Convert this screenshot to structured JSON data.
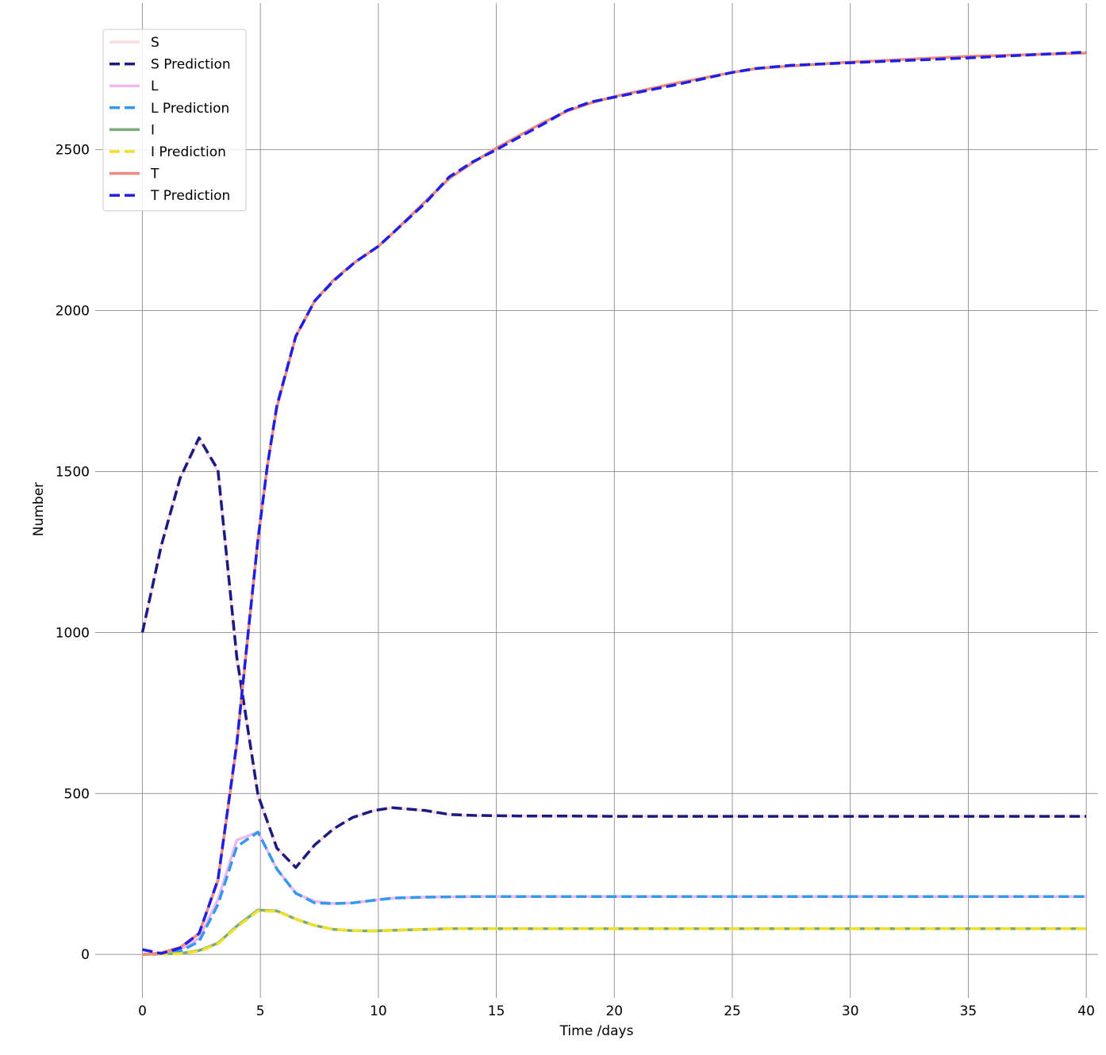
{
  "chart_data": {
    "type": "line",
    "xlabel": "Time /days",
    "ylabel": "Number",
    "xlim": [
      -2,
      40.5
    ],
    "ylim": [
      -135,
      2955
    ],
    "xticks": [
      0,
      5,
      10,
      15,
      20,
      25,
      30,
      35,
      40
    ],
    "xtick_labels": [
      "0",
      "5",
      "10",
      "15",
      "20",
      "25",
      "30",
      "35",
      "40"
    ],
    "yticks": [
      0,
      500,
      1000,
      1500,
      2000,
      2500
    ],
    "ytick_labels": [
      "0",
      "500",
      "1000",
      "1500",
      "2000",
      "2500"
    ],
    "grid": true,
    "legend_position": "top-left",
    "series": [
      {
        "name": "S",
        "style": "solid",
        "color": "#fadadd",
        "width": 3.5,
        "x": [
          0,
          0.8,
          1.6,
          2.4,
          3.2,
          4.0,
          4.9,
          5.7,
          6.5,
          7.3,
          8.1,
          8.9,
          9.8,
          10.6,
          12,
          13,
          14,
          16,
          18,
          20,
          25,
          30,
          35,
          40
        ],
        "values": [
          1000,
          1270,
          1480,
          1600,
          1500,
          920,
          490,
          330,
          270,
          340,
          390,
          425,
          446,
          456,
          446,
          434,
          431,
          430,
          430,
          429,
          429,
          429,
          429,
          429
        ]
      },
      {
        "name": "S Prediction",
        "style": "dashed",
        "color": "#1a1a80",
        "width": 3.5,
        "x": [
          0,
          0.8,
          1.6,
          2.4,
          3.2,
          4.0,
          4.9,
          5.7,
          6.5,
          7.3,
          8.1,
          8.9,
          9.8,
          10.6,
          12,
          13,
          14,
          16,
          18,
          20,
          25,
          30,
          35,
          40
        ],
        "values": [
          1000,
          1270,
          1480,
          1605,
          1505,
          925,
          495,
          330,
          270,
          340,
          390,
          425,
          447,
          456,
          447,
          435,
          432,
          430,
          430,
          429,
          429,
          429,
          429,
          429
        ]
      },
      {
        "name": "L",
        "style": "solid",
        "color": "#f0b8ee",
        "width": 3.5,
        "x": [
          0,
          0.8,
          1.6,
          2.4,
          3.2,
          4.0,
          4.9,
          5.7,
          6.5,
          7.3,
          8.1,
          8.9,
          9.8,
          10.6,
          12,
          13,
          14,
          16,
          18,
          20,
          25,
          30,
          35,
          40
        ],
        "values": [
          0,
          4,
          15,
          50,
          170,
          355,
          380,
          265,
          190,
          165,
          158,
          160,
          168,
          175,
          178,
          179,
          180,
          180,
          180,
          180,
          180,
          180,
          180,
          180
        ]
      },
      {
        "name": "L Prediction",
        "style": "dashed",
        "color": "#3399ee",
        "width": 3.5,
        "x": [
          0,
          0.8,
          1.6,
          2.4,
          3.2,
          4.0,
          4.9,
          5.7,
          6.5,
          7.3,
          8.1,
          8.9,
          9.8,
          10.6,
          12,
          13,
          14,
          16,
          18,
          20,
          25,
          30,
          35,
          40
        ],
        "values": [
          0,
          2,
          10,
          40,
          155,
          335,
          380,
          265,
          190,
          160,
          158,
          160,
          168,
          175,
          178,
          179,
          180,
          180,
          180,
          180,
          180,
          180,
          180,
          180
        ]
      },
      {
        "name": "I",
        "style": "solid",
        "color": "#7daa7d",
        "width": 3.5,
        "x": [
          0,
          0.8,
          1.6,
          2.4,
          3.2,
          4.0,
          4.9,
          5.7,
          6.5,
          7.3,
          8.1,
          8.9,
          9.8,
          10.6,
          12,
          13,
          14,
          16,
          18,
          20,
          25,
          30,
          35,
          40
        ],
        "values": [
          0,
          1,
          3,
          12,
          35,
          88,
          138,
          135,
          110,
          90,
          78,
          74,
          73,
          75,
          78,
          80,
          80,
          80,
          80,
          80,
          80,
          80,
          80,
          80
        ]
      },
      {
        "name": "I Prediction",
        "style": "dashed",
        "color": "#f2df28",
        "width": 3.5,
        "x": [
          0,
          0.8,
          1.6,
          2.4,
          3.2,
          4.0,
          4.9,
          5.7,
          6.5,
          7.3,
          8.1,
          8.9,
          9.8,
          10.6,
          12,
          13,
          14,
          16,
          18,
          20,
          25,
          30,
          35,
          40
        ],
        "values": [
          0,
          1,
          3,
          10,
          33,
          85,
          135,
          134,
          110,
          90,
          78,
          74,
          73,
          75,
          78,
          80,
          80,
          80,
          80,
          80,
          80,
          80,
          80,
          80
        ]
      },
      {
        "name": "T",
        "style": "solid",
        "color": "#f08a80",
        "width": 3.5,
        "x": [
          0,
          0.8,
          1.6,
          2.4,
          3.2,
          4.0,
          4.5,
          4.9,
          5.3,
          5.7,
          6.5,
          7.3,
          8.1,
          9.0,
          10.0,
          10.6,
          12.0,
          13.0,
          14.0,
          15.0,
          16.0,
          17.0,
          18.0,
          19.0,
          20.0,
          22.5,
          25.0,
          26.0,
          27.5,
          30.0,
          35.0,
          40.0
        ],
        "values": [
          0,
          5,
          22,
          65,
          230,
          650,
          1010,
          1290,
          1520,
          1700,
          1920,
          2030,
          2095,
          2150,
          2200,
          2240,
          2340,
          2410,
          2460,
          2505,
          2545,
          2585,
          2620,
          2645,
          2665,
          2705,
          2740,
          2752,
          2760,
          2772,
          2790,
          2800
        ]
      },
      {
        "name": "T Prediction",
        "style": "dashed",
        "color": "#1f1fe6",
        "width": 3.5,
        "x": [
          0,
          0.8,
          1.6,
          2.4,
          3.2,
          4.0,
          4.5,
          4.9,
          5.3,
          5.7,
          6.5,
          7.3,
          8.1,
          9.0,
          10.0,
          10.6,
          12.0,
          13.0,
          14.0,
          15.0,
          16.0,
          17.0,
          18.0,
          19.0,
          20.0,
          22.5,
          25.0,
          26.0,
          27.5,
          30.0,
          35.0,
          40.0
        ],
        "values": [
          15,
          3,
          20,
          65,
          232,
          655,
          1012,
          1290,
          1520,
          1705,
          1920,
          2030,
          2092,
          2150,
          2200,
          2240,
          2335,
          2415,
          2462,
          2500,
          2540,
          2580,
          2622,
          2648,
          2663,
          2700,
          2740,
          2752,
          2762,
          2770,
          2785,
          2803
        ]
      }
    ]
  }
}
